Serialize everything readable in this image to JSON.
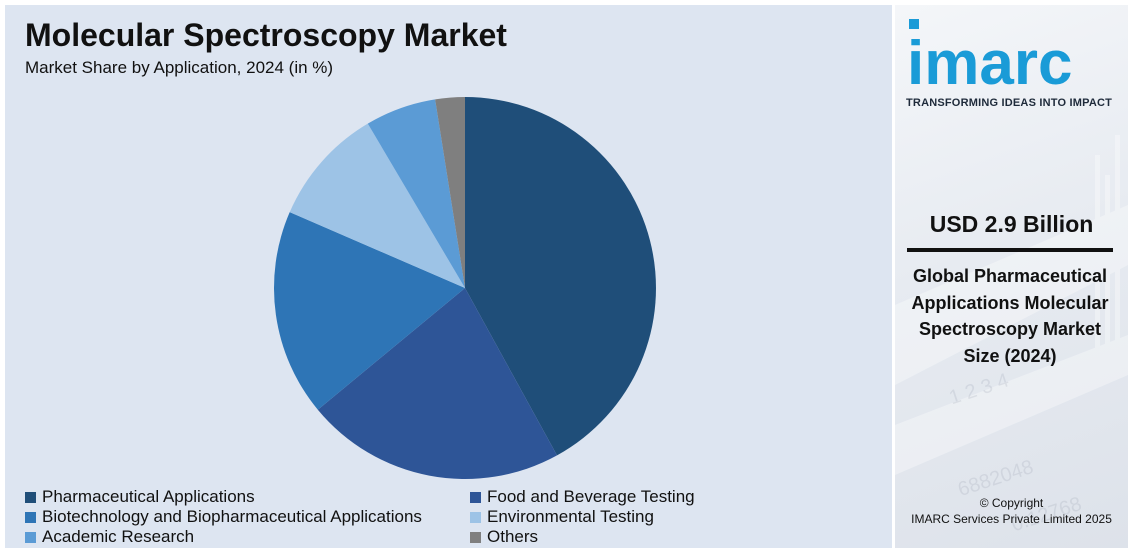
{
  "header": {
    "title": "Molecular Spectroscopy Market",
    "subtitle": "Market Share by Application, 2024 (in %)"
  },
  "chart_data": {
    "type": "pie",
    "title": "Molecular Spectroscopy Market",
    "subtitle": "Market Share by Application, 2024 (in %)",
    "start_angle_deg": 0,
    "direction": "clockwise",
    "legend_position": "bottom",
    "categories": [
      "Pharmaceutical Applications",
      "Food and Beverage Testing",
      "Biotechnology and Biopharmaceutical Applications",
      "Environmental Testing",
      "Academic Research",
      "Others"
    ],
    "values": [
      42,
      22,
      17.5,
      10,
      6,
      2.5
    ],
    "colors": [
      "#1f4e79",
      "#2e5597",
      "#2e75b6",
      "#9dc3e6",
      "#5b9bd5",
      "#7f7f7f"
    ],
    "legend_order": [
      0,
      1,
      2,
      3,
      4,
      5
    ]
  },
  "brand": {
    "logo_text": "imarc",
    "tagline": "TRANSFORMING IDEAS INTO IMPACT",
    "logo_color": "#1a9bd7"
  },
  "side": {
    "market_size": "USD 2.9 Billion",
    "description": "Global Pharmaceutical Applications Molecular Spectroscopy Market Size (2024)",
    "copyright_line1": "© Copyright",
    "copyright_line2": "IMARC Services Private Limited 2025"
  }
}
